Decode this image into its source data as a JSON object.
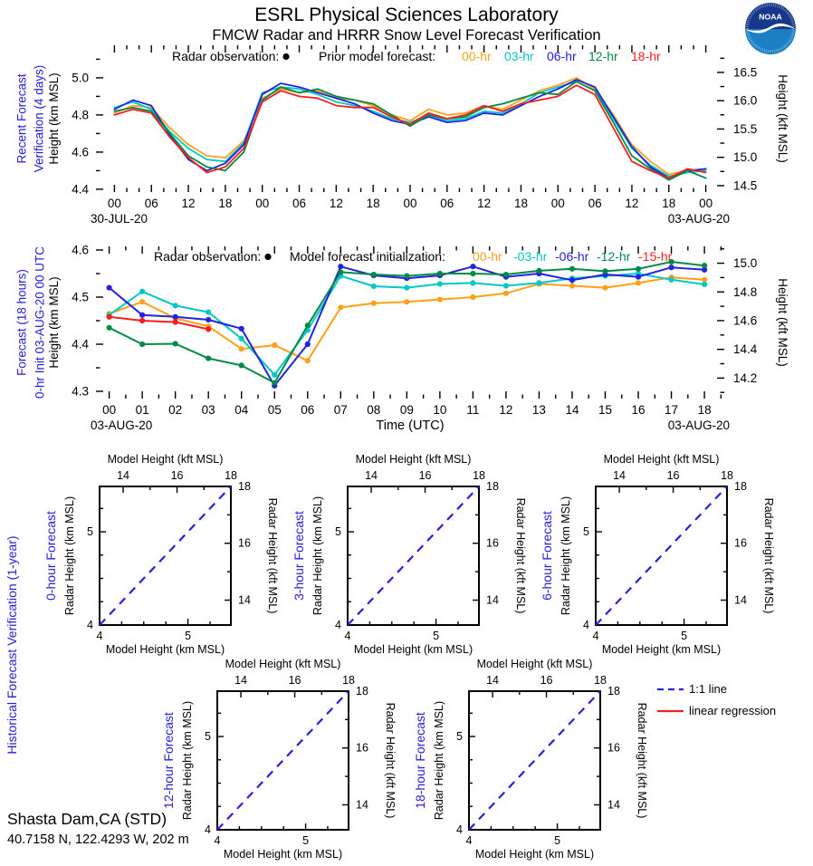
{
  "header": {
    "title": "ESRL Physical Sciences Laboratory",
    "subtitle": "FMCW Radar and HRRR Snow Level Forecast Verification",
    "logo_text": "NOAA"
  },
  "station": {
    "name": "Shasta Dam,CA (STD)",
    "location": "40.7158 N, 122.4293 W, 202 m"
  },
  "sections": {
    "plot1_line1": "Recent Forecast",
    "plot1_line2": "Verification (4 days)",
    "plot2_line1": "Forecast (18 hours)",
    "plot2_line2": "0-hr Init 03-AUG-20 00 UTC",
    "bottom": "Historical Forecast Verification (1-year)"
  },
  "colors": {
    "accent_blue": "#2222DD",
    "orange": "#FFA018",
    "cyan": "#00C8C8",
    "blue": "#2222E0",
    "green": "#008B45",
    "red": "#F81E1E"
  },
  "chart_data": [
    {
      "id": "plot1",
      "type": "line",
      "title": "Recent Forecast Verification (4 days)",
      "legend": {
        "obs_label": "Radar observation:",
        "group_label": "Prior model forecast:",
        "entries": [
          {
            "label": "00-hr",
            "color": "#FFA018"
          },
          {
            "label": "03-hr",
            "color": "#00C8C8"
          },
          {
            "label": "06-hr",
            "color": "#2222E0"
          },
          {
            "label": "12-hr",
            "color": "#008B45"
          },
          {
            "label": "18-hr",
            "color": "#F81E1E"
          }
        ]
      },
      "xlabel_left": "30-JUL-20",
      "xlabel_right": "03-AUG-20",
      "ylabel_left": "Height (km MSL)",
      "ylabel_right": "Height (kft MSL)",
      "ylim_km": [
        4.385,
        5.175
      ],
      "xticks": [
        {
          "v": 0,
          "l": "00"
        },
        {
          "v": 6,
          "l": "06"
        },
        {
          "v": 12,
          "l": "12"
        },
        {
          "v": 18,
          "l": "18"
        },
        {
          "v": 24,
          "l": "00"
        },
        {
          "v": 30,
          "l": "06"
        },
        {
          "v": 36,
          "l": "12"
        },
        {
          "v": 42,
          "l": "18"
        },
        {
          "v": 48,
          "l": "00"
        },
        {
          "v": 54,
          "l": "06"
        },
        {
          "v": 60,
          "l": "12"
        },
        {
          "v": 66,
          "l": "18"
        },
        {
          "v": 72,
          "l": "00"
        },
        {
          "v": 78,
          "l": "06"
        },
        {
          "v": 84,
          "l": "12"
        },
        {
          "v": 90,
          "l": "18"
        },
        {
          "v": 96,
          "l": "00"
        }
      ],
      "yticks_left": [
        {
          "v": 4.4,
          "l": "4.4"
        },
        {
          "v": 4.6,
          "l": "4.6"
        },
        {
          "v": 4.8,
          "l": "4.8"
        },
        {
          "v": 5.0,
          "l": "5.0"
        }
      ],
      "yticks_right_kft": [
        {
          "v": 14.5,
          "l": "14.5"
        },
        {
          "v": 15.0,
          "l": "15.0"
        },
        {
          "v": 15.5,
          "l": "15.5"
        },
        {
          "v": 16.0,
          "l": "16.0"
        },
        {
          "v": 16.5,
          "l": "16.5"
        }
      ],
      "x_hours": [
        0,
        3,
        6,
        9,
        12,
        15,
        18,
        21,
        24,
        27,
        30,
        33,
        36,
        39,
        42,
        45,
        48,
        51,
        54,
        57,
        60,
        63,
        66,
        69,
        72,
        75,
        78,
        81,
        84,
        87,
        90,
        93,
        96
      ],
      "series": [
        {
          "name": "00-hr",
          "color": "#FFA018",
          "values": [
            4.81,
            4.85,
            4.84,
            4.73,
            4.64,
            4.58,
            4.57,
            4.66,
            4.89,
            4.94,
            4.92,
            4.93,
            4.89,
            4.88,
            4.85,
            4.8,
            4.77,
            4.83,
            4.8,
            4.81,
            4.85,
            4.83,
            4.88,
            4.93,
            4.96,
            5.0,
            4.94,
            4.8,
            4.64,
            4.55,
            4.48,
            4.5,
            4.5
          ]
        },
        {
          "name": "03-hr",
          "color": "#00C8C8",
          "values": [
            4.84,
            4.87,
            4.83,
            4.71,
            4.62,
            4.56,
            4.55,
            4.65,
            4.92,
            4.95,
            4.94,
            4.91,
            4.87,
            4.85,
            4.82,
            4.78,
            4.76,
            4.8,
            4.77,
            4.78,
            4.82,
            4.81,
            4.86,
            4.92,
            4.95,
            4.98,
            4.93,
            4.78,
            4.62,
            4.53,
            4.47,
            4.49,
            4.5
          ]
        },
        {
          "name": "06-hr",
          "color": "#2222E0",
          "values": [
            4.83,
            4.88,
            4.85,
            4.69,
            4.56,
            4.5,
            4.54,
            4.64,
            4.91,
            4.97,
            4.95,
            4.92,
            4.89,
            4.86,
            4.81,
            4.77,
            4.75,
            4.79,
            4.76,
            4.77,
            4.81,
            4.8,
            4.85,
            4.9,
            4.94,
            4.99,
            4.95,
            4.79,
            4.63,
            4.52,
            4.46,
            4.5,
            4.51
          ]
        },
        {
          "name": "12-hr",
          "color": "#008B45",
          "values": [
            4.82,
            4.84,
            4.82,
            4.7,
            4.58,
            4.52,
            4.5,
            4.6,
            4.88,
            4.95,
            4.92,
            4.94,
            4.9,
            4.88,
            4.86,
            4.8,
            4.74,
            4.8,
            4.78,
            4.79,
            4.84,
            4.86,
            4.89,
            4.92,
            4.91,
            4.98,
            4.93,
            4.76,
            4.58,
            4.51,
            4.45,
            4.5,
            4.46
          ]
        },
        {
          "name": "18-hr",
          "color": "#F81E1E",
          "values": [
            4.8,
            4.83,
            4.81,
            4.68,
            4.57,
            4.49,
            4.52,
            4.62,
            4.87,
            4.93,
            4.9,
            4.89,
            4.85,
            4.84,
            4.84,
            4.79,
            4.75,
            4.81,
            4.78,
            4.8,
            4.85,
            4.82,
            4.86,
            4.88,
            4.9,
            4.96,
            4.91,
            4.73,
            4.55,
            4.5,
            4.46,
            4.51,
            4.49
          ]
        }
      ]
    },
    {
      "id": "plot2",
      "type": "line",
      "title": "Forecast (18 hours) 0-hr Init 03-AUG-20 00 UTC",
      "legend": {
        "obs_label": "Radar observation:",
        "group_label": "Model forecast initialization:",
        "entries": [
          {
            "label": "00-hr",
            "color": "#FFA018"
          },
          {
            "label": "-03-hr",
            "color": "#00C8C8"
          },
          {
            "label": "-06-hr",
            "color": "#2222E0"
          },
          {
            "label": "-12-hr",
            "color": "#008B45"
          },
          {
            "label": "-15-hr",
            "color": "#F81E1E"
          }
        ]
      },
      "xlabel_left": "03-AUG-20",
      "xlabel_right": "03-AUG-20",
      "xlabel_center": "Time (UTC)",
      "ylabel_left": "Height (km MSL)",
      "ylabel_right": "Height (kft MSL)",
      "ylim_km": [
        4.2846,
        4.6077
      ],
      "xticks": [
        {
          "v": 0,
          "l": "00"
        },
        {
          "v": 1,
          "l": "01"
        },
        {
          "v": 2,
          "l": "02"
        },
        {
          "v": 3,
          "l": "03"
        },
        {
          "v": 4,
          "l": "04"
        },
        {
          "v": 5,
          "l": "05"
        },
        {
          "v": 6,
          "l": "06"
        },
        {
          "v": 7,
          "l": "07"
        },
        {
          "v": 8,
          "l": "08"
        },
        {
          "v": 9,
          "l": "09"
        },
        {
          "v": 10,
          "l": "10"
        },
        {
          "v": 11,
          "l": "11"
        },
        {
          "v": 12,
          "l": "12"
        },
        {
          "v": 13,
          "l": "13"
        },
        {
          "v": 14,
          "l": "14"
        },
        {
          "v": 15,
          "l": "15"
        },
        {
          "v": 16,
          "l": "16"
        },
        {
          "v": 17,
          "l": "17"
        },
        {
          "v": 18,
          "l": "18"
        }
      ],
      "yticks_left": [
        {
          "v": 4.3,
          "l": "4.3"
        },
        {
          "v": 4.4,
          "l": "4.4"
        },
        {
          "v": 4.5,
          "l": "4.5"
        },
        {
          "v": 4.6,
          "l": "4.6"
        }
      ],
      "yticks_right_kft": [
        {
          "v": 14.2,
          "l": "14.2"
        },
        {
          "v": 14.4,
          "l": "14.4"
        },
        {
          "v": 14.6,
          "l": "14.6"
        },
        {
          "v": 14.8,
          "l": "14.8"
        },
        {
          "v": 15.0,
          "l": "15.0"
        }
      ],
      "series": [
        {
          "name": "00-hr",
          "color": "#FFA018",
          "x": [
            0,
            1,
            2,
            3,
            4,
            5,
            6,
            7,
            8,
            9,
            10,
            11,
            12,
            13,
            14,
            15,
            16,
            17,
            18
          ],
          "values": [
            4.465,
            4.49,
            4.455,
            4.438,
            4.39,
            4.398,
            4.365,
            4.478,
            4.487,
            4.49,
            4.495,
            4.5,
            4.508,
            4.528,
            4.524,
            4.52,
            4.53,
            4.542,
            4.537
          ]
        },
        {
          "name": "-03-hr",
          "color": "#00C8C8",
          "x": [
            0,
            1,
            2,
            3,
            4,
            5,
            6,
            7,
            8,
            9,
            10,
            11,
            12,
            13,
            14,
            15,
            16,
            17,
            18
          ],
          "values": [
            4.462,
            4.512,
            4.482,
            4.468,
            4.412,
            4.335,
            4.43,
            4.545,
            4.523,
            4.52,
            4.528,
            4.53,
            4.524,
            4.53,
            4.54,
            4.545,
            4.55,
            4.537,
            4.527
          ]
        },
        {
          "name": "-06-hr",
          "color": "#2222E0",
          "x": [
            0,
            1,
            2,
            3,
            4,
            5,
            6,
            7,
            8,
            9,
            10,
            11,
            12,
            13,
            14,
            15,
            16,
            17,
            18
          ],
          "values": [
            4.52,
            4.462,
            4.458,
            4.452,
            4.433,
            4.312,
            4.4,
            4.565,
            4.546,
            4.54,
            4.546,
            4.565,
            4.543,
            4.55,
            4.536,
            4.548,
            4.543,
            4.563,
            4.558
          ]
        },
        {
          "name": "-12-hr",
          "color": "#008B45",
          "x": [
            0,
            1,
            2,
            3,
            4,
            5,
            6,
            7,
            8,
            9,
            10,
            11,
            12,
            13,
            14,
            15,
            16,
            17,
            18
          ],
          "values": [
            4.435,
            4.4,
            4.401,
            4.37,
            4.355,
            4.318,
            4.44,
            4.553,
            4.548,
            4.545,
            4.55,
            4.55,
            4.548,
            4.556,
            4.56,
            4.555,
            4.56,
            4.575,
            4.567
          ]
        },
        {
          "name": "-15-hr",
          "color": "#F81E1E",
          "x": [
            0,
            1,
            2,
            3
          ],
          "values": [
            4.458,
            4.45,
            4.447,
            4.432
          ]
        }
      ]
    },
    {
      "id": "scatter_panels",
      "type": "scatter",
      "panels": [
        {
          "label": "0-hour Forecast"
        },
        {
          "label": "3-hour Forecast"
        },
        {
          "label": "6-hour Forecast"
        },
        {
          "label": "12-hour Forecast"
        },
        {
          "label": "18-hour Forecast"
        }
      ],
      "xlabel_top": "Model Height (kft MSL)",
      "xlabel_bottom": "Model Height (km MSL)",
      "ylabel_left": "Radar Height (km MSL)",
      "ylabel_right": "Radar Height (kft MSL)",
      "lim_km": [
        4,
        5.486
      ],
      "ticks_km": [
        {
          "v": 4,
          "l": "4"
        },
        {
          "v": 5,
          "l": "5"
        }
      ],
      "ticks_kft": [
        {
          "v": 14,
          "l": "14"
        },
        {
          "v": 16,
          "l": "16"
        },
        {
          "v": 18,
          "l": "18"
        }
      ],
      "one_to_one_line": true,
      "legend": [
        {
          "label": "1:1 line",
          "color": "#2222E0",
          "dashed": true
        },
        {
          "label": "linear regression",
          "color": "#F81E1E",
          "dashed": false
        }
      ]
    }
  ]
}
